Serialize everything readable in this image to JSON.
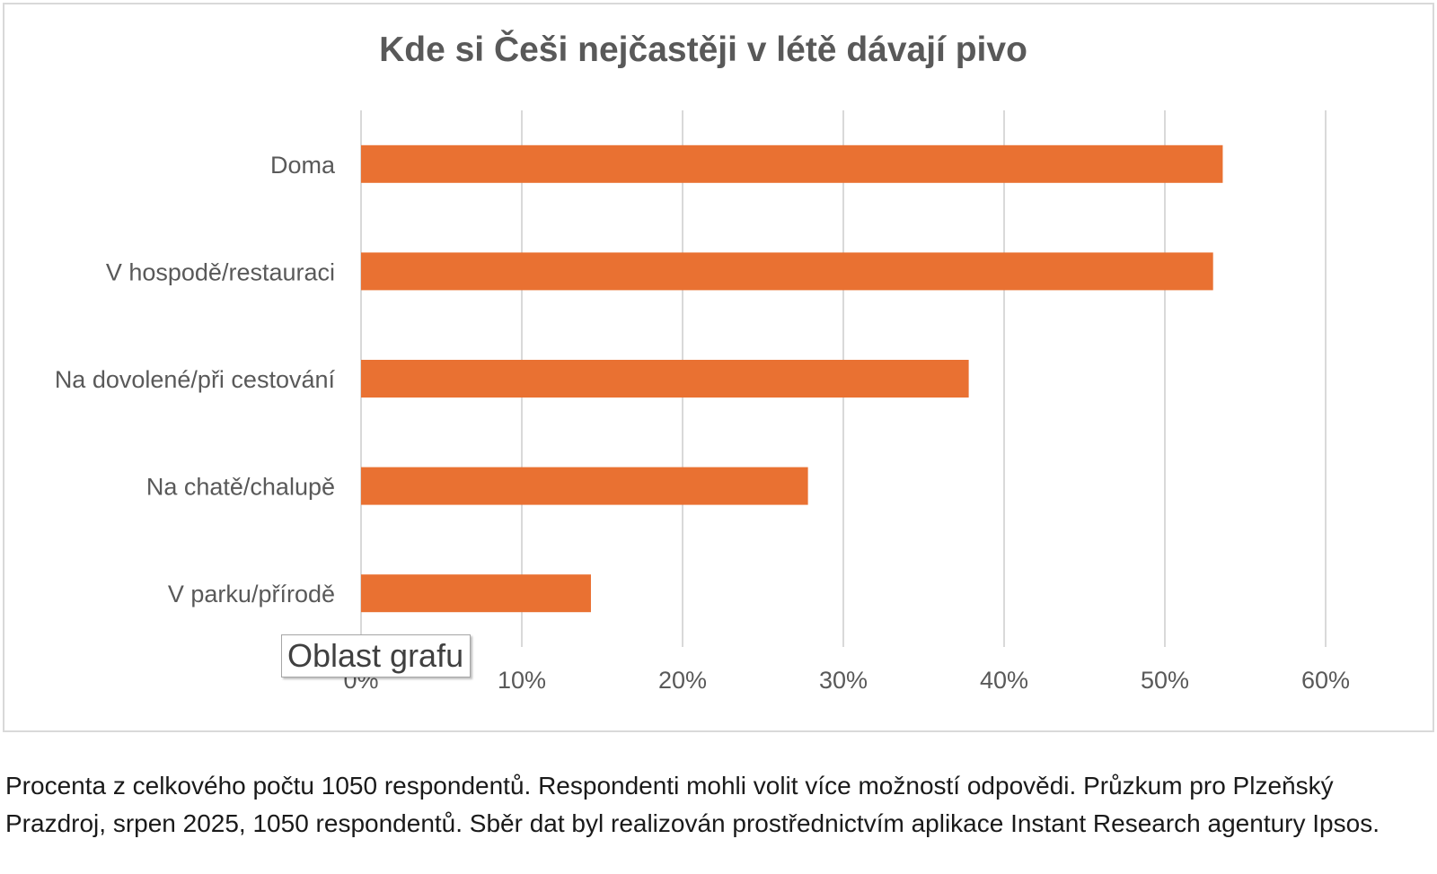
{
  "accent_color": "#E97132",
  "chart_data": {
    "type": "bar",
    "orientation": "horizontal",
    "title": "Kde si Češi nejčastěji v létě dávají pivo",
    "categories": [
      "Doma",
      "V hospodě/restauraci",
      "Na dovolené/při cestování",
      "Na chatě/chalupě",
      "V parku/přírodě"
    ],
    "values": [
      53.6,
      53.0,
      37.8,
      27.8,
      14.3
    ],
    "xlim": [
      0,
      60
    ],
    "xticks": [
      "0%",
      "10%",
      "20%",
      "30%",
      "40%",
      "50%",
      "60%"
    ],
    "grid": true,
    "legend": "none"
  },
  "tooltip": {
    "text": "Oblast grafu"
  },
  "footnote": "Procenta z celkového počtu 1050 respondentů. Respondenti mohli volit více možností odpovědi. Průzkum pro Plzeňský Prazdroj, srpen 2025, 1050 respondentů. Sběr dat byl realizován prostřednictvím aplikace Instant Research agentury Ipsos."
}
